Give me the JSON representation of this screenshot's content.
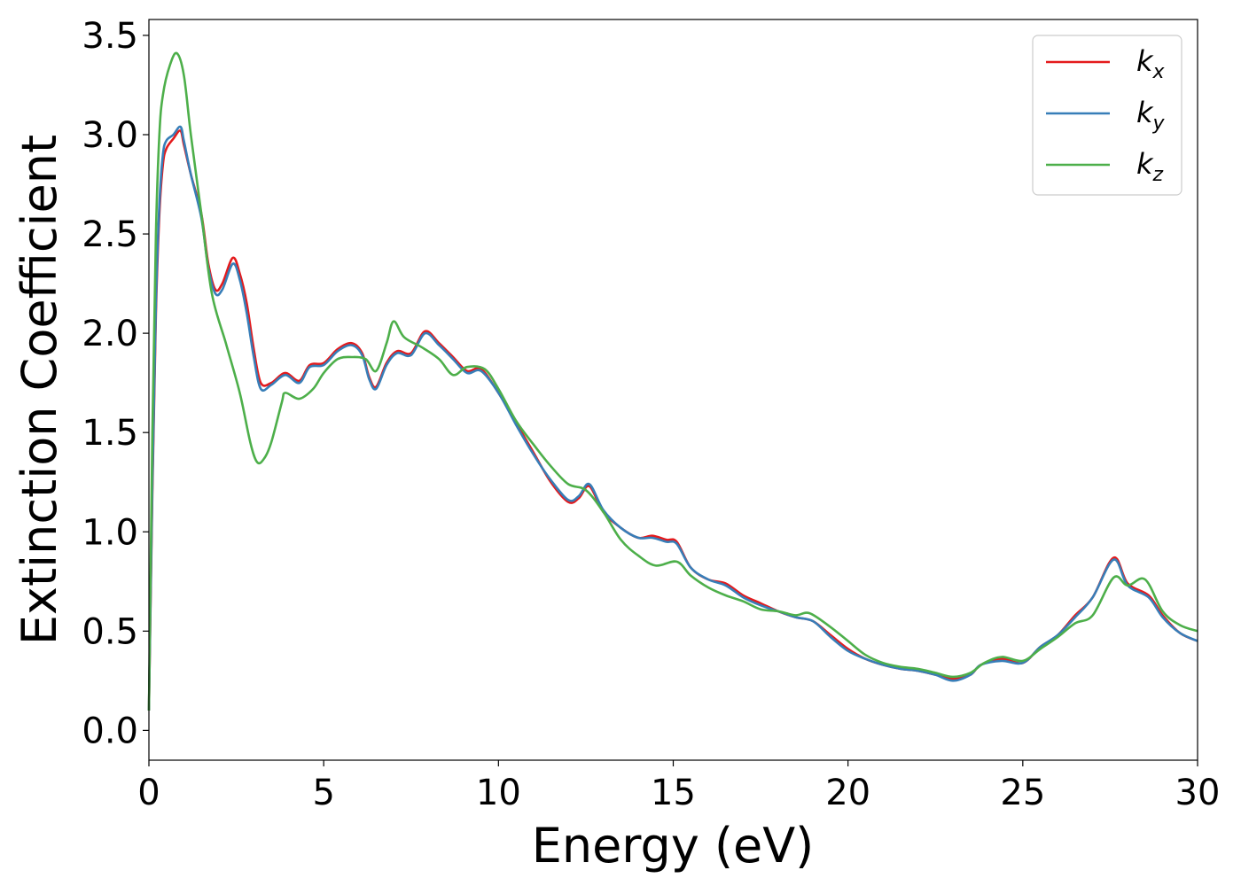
{
  "chart_data": {
    "type": "line",
    "title": "",
    "xlabel": "Energy (eV)",
    "ylabel": "Extinction Coefficient",
    "xlim": [
      0,
      30
    ],
    "ylim": [
      -0.15,
      3.58
    ],
    "xticks": [
      0,
      5,
      10,
      15,
      20,
      25,
      30
    ],
    "xtick_labels": [
      "0",
      "5",
      "10",
      "15",
      "20",
      "25",
      "30"
    ],
    "yticks": [
      0.0,
      0.5,
      1.0,
      1.5,
      2.0,
      2.5,
      3.0,
      3.5
    ],
    "ytick_labels": [
      "0.0",
      "0.5",
      "1.0",
      "1.5",
      "2.0",
      "2.5",
      "3.0",
      "3.5"
    ],
    "grid": false,
    "legend_position": "top-right",
    "series": [
      {
        "name": "k",
        "subscript": "x",
        "color": "#e41a1c",
        "points": [
          [
            0,
            0.1
          ],
          [
            0.1,
            1.2
          ],
          [
            0.2,
            2.1
          ],
          [
            0.3,
            2.6
          ],
          [
            0.4,
            2.85
          ],
          [
            0.5,
            2.93
          ],
          [
            0.7,
            2.98
          ],
          [
            0.9,
            3.02
          ],
          [
            1.0,
            2.95
          ],
          [
            1.2,
            2.8
          ],
          [
            1.5,
            2.6
          ],
          [
            1.7,
            2.35
          ],
          [
            1.9,
            2.22
          ],
          [
            2.1,
            2.25
          ],
          [
            2.4,
            2.38
          ],
          [
            2.6,
            2.3
          ],
          [
            2.8,
            2.15
          ],
          [
            3.0,
            1.92
          ],
          [
            3.2,
            1.75
          ],
          [
            3.5,
            1.75
          ],
          [
            3.9,
            1.8
          ],
          [
            4.3,
            1.76
          ],
          [
            4.6,
            1.84
          ],
          [
            5.0,
            1.85
          ],
          [
            5.4,
            1.92
          ],
          [
            5.8,
            1.95
          ],
          [
            6.1,
            1.9
          ],
          [
            6.3,
            1.78
          ],
          [
            6.5,
            1.73
          ],
          [
            6.8,
            1.85
          ],
          [
            7.1,
            1.91
          ],
          [
            7.5,
            1.9
          ],
          [
            7.9,
            2.01
          ],
          [
            8.3,
            1.95
          ],
          [
            8.7,
            1.88
          ],
          [
            9.1,
            1.81
          ],
          [
            9.5,
            1.82
          ],
          [
            10.0,
            1.7
          ],
          [
            10.5,
            1.55
          ],
          [
            11.0,
            1.4
          ],
          [
            11.5,
            1.25
          ],
          [
            12.0,
            1.15
          ],
          [
            12.3,
            1.17
          ],
          [
            12.6,
            1.23
          ],
          [
            13.0,
            1.1
          ],
          [
            13.5,
            1.02
          ],
          [
            14.0,
            0.97
          ],
          [
            14.4,
            0.98
          ],
          [
            14.8,
            0.96
          ],
          [
            15.1,
            0.95
          ],
          [
            15.5,
            0.82
          ],
          [
            16.0,
            0.76
          ],
          [
            16.5,
            0.74
          ],
          [
            17.0,
            0.68
          ],
          [
            17.5,
            0.64
          ],
          [
            18.0,
            0.6
          ],
          [
            18.5,
            0.57
          ],
          [
            19.0,
            0.55
          ],
          [
            19.5,
            0.48
          ],
          [
            20.0,
            0.41
          ],
          [
            20.5,
            0.36
          ],
          [
            21.0,
            0.33
          ],
          [
            21.5,
            0.31
          ],
          [
            22.0,
            0.3
          ],
          [
            22.5,
            0.28
          ],
          [
            23.0,
            0.26
          ],
          [
            23.5,
            0.28
          ],
          [
            23.8,
            0.33
          ],
          [
            24.4,
            0.36
          ],
          [
            25.0,
            0.34
          ],
          [
            25.5,
            0.42
          ],
          [
            26.0,
            0.48
          ],
          [
            26.5,
            0.58
          ],
          [
            27.0,
            0.67
          ],
          [
            27.6,
            0.87
          ],
          [
            28.0,
            0.74
          ],
          [
            28.6,
            0.68
          ],
          [
            29.0,
            0.58
          ],
          [
            29.5,
            0.49
          ],
          [
            30.0,
            0.45
          ]
        ]
      },
      {
        "name": "k",
        "subscript": "y",
        "color": "#377eb8",
        "points": [
          [
            0,
            0.1
          ],
          [
            0.1,
            1.25
          ],
          [
            0.2,
            2.15
          ],
          [
            0.3,
            2.65
          ],
          [
            0.4,
            2.9
          ],
          [
            0.5,
            2.97
          ],
          [
            0.7,
            3.0
          ],
          [
            0.9,
            3.04
          ],
          [
            1.0,
            2.97
          ],
          [
            1.2,
            2.8
          ],
          [
            1.5,
            2.58
          ],
          [
            1.7,
            2.33
          ],
          [
            1.9,
            2.2
          ],
          [
            2.1,
            2.22
          ],
          [
            2.4,
            2.35
          ],
          [
            2.6,
            2.27
          ],
          [
            2.8,
            2.1
          ],
          [
            3.0,
            1.88
          ],
          [
            3.2,
            1.72
          ],
          [
            3.5,
            1.74
          ],
          [
            3.9,
            1.79
          ],
          [
            4.3,
            1.75
          ],
          [
            4.6,
            1.83
          ],
          [
            5.0,
            1.84
          ],
          [
            5.4,
            1.91
          ],
          [
            5.8,
            1.94
          ],
          [
            6.1,
            1.89
          ],
          [
            6.3,
            1.77
          ],
          [
            6.5,
            1.72
          ],
          [
            6.8,
            1.84
          ],
          [
            7.1,
            1.9
          ],
          [
            7.5,
            1.89
          ],
          [
            7.9,
            2.0
          ],
          [
            8.3,
            1.94
          ],
          [
            8.7,
            1.87
          ],
          [
            9.1,
            1.8
          ],
          [
            9.5,
            1.81
          ],
          [
            10.0,
            1.7
          ],
          [
            10.5,
            1.54
          ],
          [
            11.0,
            1.39
          ],
          [
            11.5,
            1.26
          ],
          [
            12.0,
            1.16
          ],
          [
            12.3,
            1.18
          ],
          [
            12.6,
            1.24
          ],
          [
            13.0,
            1.11
          ],
          [
            13.5,
            1.02
          ],
          [
            14.0,
            0.97
          ],
          [
            14.4,
            0.97
          ],
          [
            14.8,
            0.95
          ],
          [
            15.1,
            0.94
          ],
          [
            15.5,
            0.82
          ],
          [
            16.0,
            0.76
          ],
          [
            16.5,
            0.73
          ],
          [
            17.0,
            0.67
          ],
          [
            17.5,
            0.63
          ],
          [
            18.0,
            0.6
          ],
          [
            18.5,
            0.57
          ],
          [
            19.0,
            0.55
          ],
          [
            19.5,
            0.47
          ],
          [
            20.0,
            0.4
          ],
          [
            20.5,
            0.36
          ],
          [
            21.0,
            0.33
          ],
          [
            21.5,
            0.31
          ],
          [
            22.0,
            0.3
          ],
          [
            22.5,
            0.28
          ],
          [
            23.0,
            0.25
          ],
          [
            23.5,
            0.28
          ],
          [
            23.8,
            0.33
          ],
          [
            24.4,
            0.35
          ],
          [
            25.0,
            0.34
          ],
          [
            25.5,
            0.42
          ],
          [
            26.0,
            0.48
          ],
          [
            26.5,
            0.57
          ],
          [
            27.0,
            0.67
          ],
          [
            27.6,
            0.86
          ],
          [
            28.0,
            0.73
          ],
          [
            28.6,
            0.67
          ],
          [
            29.0,
            0.57
          ],
          [
            29.5,
            0.49
          ],
          [
            30.0,
            0.45
          ]
        ]
      },
      {
        "name": "k",
        "subscript": "z",
        "color": "#4daf4a",
        "points": [
          [
            0,
            0.1
          ],
          [
            0.1,
            1.5
          ],
          [
            0.2,
            2.5
          ],
          [
            0.3,
            3.0
          ],
          [
            0.4,
            3.2
          ],
          [
            0.6,
            3.35
          ],
          [
            0.8,
            3.41
          ],
          [
            1.0,
            3.3
          ],
          [
            1.2,
            3.0
          ],
          [
            1.5,
            2.6
          ],
          [
            1.8,
            2.2
          ],
          [
            2.2,
            1.95
          ],
          [
            2.6,
            1.7
          ],
          [
            2.9,
            1.45
          ],
          [
            3.1,
            1.35
          ],
          [
            3.3,
            1.37
          ],
          [
            3.5,
            1.45
          ],
          [
            3.8,
            1.65
          ],
          [
            3.9,
            1.7
          ],
          [
            4.3,
            1.67
          ],
          [
            4.7,
            1.72
          ],
          [
            5.0,
            1.8
          ],
          [
            5.4,
            1.87
          ],
          [
            5.8,
            1.88
          ],
          [
            6.2,
            1.87
          ],
          [
            6.5,
            1.81
          ],
          [
            6.8,
            1.95
          ],
          [
            7.0,
            2.06
          ],
          [
            7.3,
            1.98
          ],
          [
            7.8,
            1.93
          ],
          [
            8.3,
            1.87
          ],
          [
            8.7,
            1.79
          ],
          [
            9.1,
            1.83
          ],
          [
            9.6,
            1.82
          ],
          [
            10.0,
            1.72
          ],
          [
            10.5,
            1.56
          ],
          [
            11.0,
            1.44
          ],
          [
            11.5,
            1.33
          ],
          [
            12.0,
            1.24
          ],
          [
            12.5,
            1.21
          ],
          [
            13.0,
            1.1
          ],
          [
            13.5,
            0.96
          ],
          [
            14.0,
            0.88
          ],
          [
            14.5,
            0.83
          ],
          [
            15.1,
            0.85
          ],
          [
            15.5,
            0.78
          ],
          [
            16.0,
            0.72
          ],
          [
            16.5,
            0.68
          ],
          [
            17.0,
            0.65
          ],
          [
            17.5,
            0.61
          ],
          [
            18.0,
            0.6
          ],
          [
            18.5,
            0.58
          ],
          [
            18.9,
            0.59
          ],
          [
            19.5,
            0.52
          ],
          [
            20.0,
            0.45
          ],
          [
            20.5,
            0.38
          ],
          [
            21.0,
            0.34
          ],
          [
            21.5,
            0.32
          ],
          [
            22.0,
            0.31
          ],
          [
            22.5,
            0.29
          ],
          [
            23.0,
            0.27
          ],
          [
            23.5,
            0.29
          ],
          [
            23.9,
            0.34
          ],
          [
            24.4,
            0.37
          ],
          [
            25.0,
            0.35
          ],
          [
            25.5,
            0.41
          ],
          [
            26.0,
            0.47
          ],
          [
            26.5,
            0.54
          ],
          [
            27.0,
            0.58
          ],
          [
            27.6,
            0.77
          ],
          [
            28.0,
            0.73
          ],
          [
            28.5,
            0.76
          ],
          [
            29.0,
            0.6
          ],
          [
            29.5,
            0.53
          ],
          [
            30.0,
            0.5
          ]
        ]
      }
    ]
  }
}
